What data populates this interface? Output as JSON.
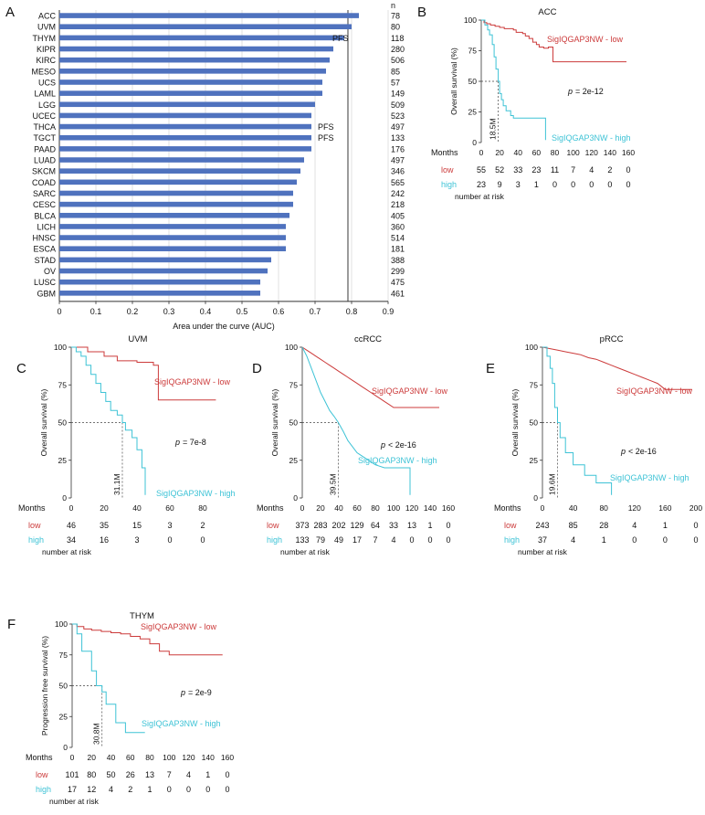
{
  "colors": {
    "bar": "#4f72be",
    "low": "#cc3b3b",
    "high": "#3ec3d6",
    "axis": "#333333",
    "grid": "#d9d9d9"
  },
  "chart_data": [
    {
      "panel": "A",
      "type": "bar",
      "orientation": "horizontal",
      "title": "",
      "xlabel": "Area under the curve (AUC)",
      "ylabel": "",
      "xlim": [
        0,
        0.9
      ],
      "xticks": [
        0,
        0.1,
        0.2,
        0.3,
        0.4,
        0.5,
        0.6,
        0.7,
        0.8,
        0.9
      ],
      "grid": true,
      "reference_line": 0.79,
      "n_header": "n",
      "categories": [
        "ACC",
        "UVM",
        "THYM",
        "KIPR",
        "KIRC",
        "MESO",
        "UCS",
        "LAML",
        "LGG",
        "UCEC",
        "THCA",
        "TGCT",
        "PAAD",
        "LUAD",
        "SKCM",
        "COAD",
        "SARC",
        "CESC",
        "BLCA",
        "LICH",
        "HNSC",
        "ESCA",
        "STAD",
        "OV",
        "LUSC",
        "GBM"
      ],
      "values": [
        0.82,
        0.8,
        0.78,
        0.75,
        0.74,
        0.73,
        0.72,
        0.72,
        0.7,
        0.69,
        0.69,
        0.69,
        0.69,
        0.67,
        0.66,
        0.65,
        0.64,
        0.64,
        0.63,
        0.62,
        0.62,
        0.62,
        0.58,
        0.57,
        0.55,
        0.55
      ],
      "n": [
        "78",
        "80",
        "118",
        "280",
        "506",
        "85",
        "57",
        "149",
        "509",
        "523",
        "497",
        "133",
        "176",
        "497",
        "346",
        "565",
        "242",
        "218",
        "405",
        "360",
        "514",
        "181",
        "388",
        "299",
        "475",
        "461"
      ],
      "annotations": [
        {
          "category": "THYM",
          "text": "PFS"
        },
        {
          "category": "THCA",
          "text": "PFS"
        },
        {
          "category": "TGCT",
          "text": "PFS"
        }
      ]
    },
    {
      "panel": "B",
      "type": "line",
      "title": "ACC",
      "ylabel": "Overall survival (%)",
      "xlabel": "Months",
      "xlim": [
        0,
        160
      ],
      "ylim": [
        0,
        100
      ],
      "xticks": [
        "0",
        "20",
        "40",
        "60",
        "80",
        "100",
        "120",
        "140",
        "160"
      ],
      "yticks": [
        "0",
        "25",
        "50",
        "75",
        "100"
      ],
      "median_label": "18.5M",
      "median_x": 18.5,
      "pvalue": "= 2e-12",
      "series": [
        {
          "name": "SigIQGAP3NW - low",
          "x": [
            0,
            3,
            3,
            6,
            6,
            10,
            10,
            15,
            15,
            20,
            20,
            25,
            25,
            30,
            30,
            35,
            35,
            38,
            38,
            45,
            45,
            48,
            48,
            52,
            52,
            56,
            56,
            60,
            60,
            63,
            63,
            68,
            68,
            73,
            73,
            78,
            78,
            158
          ],
          "y": [
            100,
            100,
            98,
            98,
            97,
            97,
            96,
            96,
            95,
            95,
            94,
            94,
            93,
            93,
            93,
            93,
            92,
            92,
            90,
            90,
            89,
            89,
            87,
            87,
            85,
            85,
            82,
            82,
            80,
            80,
            78,
            78,
            77,
            77,
            78,
            78,
            66,
            66
          ]
        },
        {
          "name": "SigIQGAP3NW - high",
          "x": [
            0,
            4,
            4,
            7,
            7,
            9,
            9,
            12,
            12,
            14,
            14,
            16,
            16,
            18.5,
            18.5,
            20,
            20,
            22,
            22,
            24,
            24,
            27,
            27,
            32,
            32,
            35,
            35,
            45,
            45,
            55,
            55,
            70,
            70
          ],
          "y": [
            100,
            100,
            96,
            96,
            92,
            92,
            88,
            88,
            80,
            80,
            70,
            70,
            60,
            60,
            50,
            50,
            40,
            40,
            35,
            35,
            30,
            30,
            26,
            26,
            22,
            22,
            20,
            20,
            20,
            20,
            20,
            20,
            2
          ]
        }
      ],
      "risk_table": {
        "label": "number at risk",
        "times": [
          "0",
          "20",
          "40",
          "60",
          "80",
          "100",
          "120",
          "140",
          "160"
        ],
        "low": [
          "55",
          "52",
          "33",
          "23",
          "11",
          "7",
          "4",
          "2",
          "0"
        ],
        "high": [
          "23",
          "9",
          "3",
          "1",
          "0",
          "0",
          "0",
          "0",
          "0"
        ]
      }
    },
    {
      "panel": "C",
      "type": "line",
      "title": "UVM",
      "ylabel": "Overall survival (%)",
      "xlabel": "Months",
      "xlim": [
        0,
        90
      ],
      "ylim": [
        0,
        100
      ],
      "xticks": [
        "0",
        "20",
        "40",
        "60",
        "80"
      ],
      "yticks": [
        "0",
        "25",
        "50",
        "75",
        "100"
      ],
      "median_label": "31.1M",
      "median_x": 31.1,
      "pvalue": "= 7e-8",
      "series": [
        {
          "name": "SigIQGAP3NW - low",
          "x": [
            0,
            10,
            10,
            20,
            20,
            28,
            28,
            40,
            40,
            50,
            50,
            53,
            53,
            88
          ],
          "y": [
            100,
            100,
            97,
            97,
            94,
            94,
            91,
            91,
            90,
            90,
            88,
            88,
            65,
            65
          ]
        },
        {
          "name": "SigIQGAP3NW - high",
          "x": [
            0,
            3,
            3,
            6,
            6,
            9,
            9,
            12,
            12,
            15,
            15,
            18,
            18,
            21,
            21,
            24,
            24,
            28,
            28,
            31.1,
            31.1,
            33,
            33,
            37,
            37,
            40,
            40,
            43,
            43,
            45,
            45
          ],
          "y": [
            100,
            100,
            97,
            97,
            94,
            94,
            88,
            88,
            82,
            82,
            76,
            76,
            70,
            70,
            64,
            64,
            58,
            58,
            55,
            55,
            50,
            50,
            45,
            45,
            40,
            40,
            32,
            32,
            20,
            20,
            2
          ]
        }
      ],
      "risk_table": {
        "label": "number at risk",
        "times": [
          "0",
          "20",
          "40",
          "60",
          "80"
        ],
        "low": [
          "46",
          "35",
          "15",
          "3",
          "2"
        ],
        "high": [
          "34",
          "16",
          "3",
          "0",
          "0"
        ]
      }
    },
    {
      "panel": "D",
      "type": "line",
      "title": "ccRCC",
      "ylabel": "Overall survival (%)",
      "xlabel": "Months",
      "xlim": [
        0,
        160
      ],
      "ylim": [
        0,
        100
      ],
      "xticks": [
        "0",
        "20",
        "40",
        "60",
        "80",
        "100",
        "120",
        "140",
        "160"
      ],
      "yticks": [
        "0",
        "25",
        "50",
        "75",
        "100"
      ],
      "median_label": "39.5M",
      "median_x": 39.5,
      "pvalue": "< 2e-16",
      "series": [
        {
          "name": "SigIQGAP3NW - low",
          "x": [
            0,
            5,
            10,
            15,
            20,
            25,
            30,
            35,
            40,
            45,
            50,
            55,
            60,
            65,
            70,
            75,
            80,
            85,
            90,
            95,
            100,
            110,
            120,
            130,
            140,
            150
          ],
          "y": [
            100,
            98,
            96,
            94,
            92,
            90,
            88,
            86,
            84,
            82,
            80,
            78,
            76,
            74,
            72,
            70,
            68,
            66,
            64,
            62,
            60,
            60,
            60,
            60,
            60,
            60
          ]
        },
        {
          "name": "SigIQGAP3NW - high",
          "x": [
            0,
            5,
            10,
            15,
            20,
            25,
            30,
            35,
            39.5,
            45,
            50,
            55,
            60,
            65,
            70,
            75,
            80,
            90,
            100,
            110,
            118,
            118
          ],
          "y": [
            100,
            94,
            86,
            78,
            70,
            64,
            58,
            54,
            50,
            44,
            38,
            34,
            30,
            28,
            26,
            24,
            22,
            20,
            20,
            20,
            20,
            2
          ]
        }
      ],
      "risk_table": {
        "label": "number at risk",
        "times": [
          "0",
          "20",
          "40",
          "60",
          "80",
          "100",
          "120",
          "140",
          "160"
        ],
        "low": [
          "373",
          "283",
          "202",
          "129",
          "64",
          "33",
          "13",
          "1",
          "0"
        ],
        "high": [
          "133",
          "79",
          "49",
          "17",
          "7",
          "4",
          "0",
          "0",
          "0"
        ]
      }
    },
    {
      "panel": "E",
      "type": "line",
      "title": "pRCC",
      "ylabel": "Overall survival (%)",
      "xlabel": "Months",
      "xlim": [
        0,
        200
      ],
      "ylim": [
        0,
        100
      ],
      "xticks": [
        "0",
        "40",
        "80",
        "120",
        "160",
        "200"
      ],
      "yticks": [
        "0",
        "25",
        "50",
        "75",
        "100"
      ],
      "median_label": "19.6M",
      "median_x": 19.6,
      "pvalue": "< 2e-16",
      "series": [
        {
          "name": "SigIQGAP3NW - low",
          "x": [
            0,
            10,
            20,
            30,
            40,
            50,
            60,
            70,
            80,
            90,
            100,
            110,
            120,
            130,
            140,
            150,
            160,
            175,
            195
          ],
          "y": [
            100,
            99,
            98,
            97,
            96,
            95,
            93,
            92,
            90,
            88,
            86,
            84,
            82,
            80,
            78,
            76,
            72,
            72,
            72
          ]
        },
        {
          "name": "SigIQGAP3NW - high",
          "x": [
            0,
            6,
            6,
            10,
            10,
            13,
            13,
            16,
            16,
            19.6,
            19.6,
            23,
            23,
            30,
            30,
            40,
            40,
            55,
            55,
            70,
            70,
            90,
            90
          ],
          "y": [
            100,
            100,
            94,
            94,
            86,
            86,
            76,
            76,
            60,
            60,
            50,
            50,
            40,
            40,
            30,
            30,
            22,
            22,
            15,
            15,
            10,
            10,
            2
          ]
        }
      ],
      "risk_table": {
        "label": "number at risk",
        "times": [
          "0",
          "40",
          "80",
          "120",
          "160",
          "200"
        ],
        "low": [
          "243",
          "85",
          "28",
          "4",
          "1",
          "0"
        ],
        "high": [
          "37",
          "4",
          "1",
          "0",
          "0",
          "0"
        ]
      }
    },
    {
      "panel": "F",
      "type": "line",
      "title": "THYM",
      "ylabel": "Progression free survival (%)",
      "xlabel": "Months",
      "xlim": [
        0,
        160
      ],
      "ylim": [
        0,
        100
      ],
      "xticks": [
        "0",
        "20",
        "40",
        "60",
        "80",
        "100",
        "120",
        "140",
        "160"
      ],
      "yticks": [
        "0",
        "25",
        "50",
        "75",
        "100"
      ],
      "median_label": "30.8M",
      "median_x": 30.8,
      "pvalue": "= 2e-9",
      "series": [
        {
          "name": "SigIQGAP3NW - low",
          "x": [
            0,
            5,
            5,
            12,
            12,
            20,
            20,
            30,
            30,
            40,
            40,
            50,
            50,
            60,
            60,
            70,
            70,
            80,
            80,
            90,
            90,
            100,
            100,
            155
          ],
          "y": [
            100,
            100,
            98,
            98,
            96,
            96,
            95,
            95,
            94,
            94,
            93,
            93,
            92,
            92,
            90,
            90,
            88,
            88,
            84,
            84,
            78,
            78,
            75,
            75
          ]
        },
        {
          "name": "SigIQGAP3NW - high",
          "x": [
            0,
            5,
            5,
            10,
            10,
            20,
            20,
            25,
            25,
            30.8,
            30.8,
            35,
            35,
            45,
            45,
            55,
            55,
            60,
            60,
            75
          ],
          "y": [
            100,
            100,
            92,
            92,
            78,
            78,
            62,
            62,
            50,
            50,
            45,
            45,
            35,
            35,
            20,
            20,
            12,
            12,
            12,
            12
          ]
        }
      ],
      "risk_table": {
        "label": "number at risk",
        "times": [
          "0",
          "20",
          "40",
          "60",
          "80",
          "100",
          "120",
          "140",
          "160"
        ],
        "low": [
          "101",
          "80",
          "50",
          "26",
          "13",
          "7",
          "4",
          "1",
          "0"
        ],
        "high": [
          "17",
          "12",
          "4",
          "2",
          "1",
          "0",
          "0",
          "0",
          "0"
        ]
      }
    }
  ],
  "p_symbol": "p",
  "risk_row_labels": {
    "low": "low",
    "high": "high"
  }
}
